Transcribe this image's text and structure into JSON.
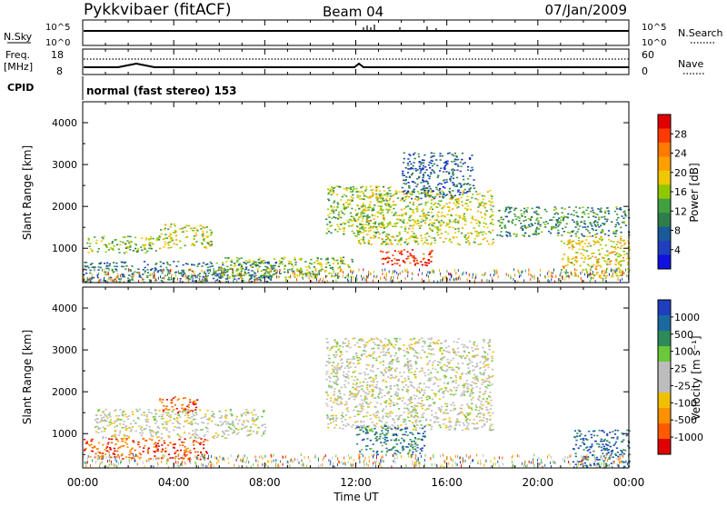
{
  "header": {
    "radar": "Pykkvibaer (fitACF)",
    "beam": "Beam 04",
    "date": "07/Jan/2009"
  },
  "strips": {
    "nsky_label": "N.Sky",
    "nsearch_label": "N.Search",
    "nsky_ticks": [
      "10^5",
      "10^0"
    ],
    "nsearch_ticks": [
      "10^5",
      "10^0"
    ],
    "freq_label": "Freq.",
    "freq_unit": "[MHz]",
    "freq_ticks": [
      "18",
      "8"
    ],
    "nave_label": "Nave",
    "nave_ticks": [
      "60",
      "0"
    ],
    "cpid_label": "CPID",
    "cpid_text": "normal (fast stereo) 153"
  },
  "power_panel": {
    "ylabel": "Slant Range [km]",
    "colorbar_label": "Power [dB]",
    "colorbar_ticks": [
      "28",
      "24",
      "20",
      "16",
      "12",
      "8",
      "4"
    ],
    "colorbar_colors": [
      "#e00000",
      "#ff3a00",
      "#ff7a00",
      "#ffa000",
      "#f0c800",
      "#90c800",
      "#40a040",
      "#2e7d4a",
      "#1a5a9a",
      "#1f3fbf",
      "#1010e0"
    ]
  },
  "velocity_panel": {
    "ylabel": "Slant Range [km]",
    "colorbar_label": "Velocity [m s⁻¹]",
    "colorbar_ticks": [
      "1000",
      "500",
      "100",
      "25",
      "-25",
      "-100",
      "-500",
      "-1000"
    ],
    "colorbar_colors": [
      "#1f3fbf",
      "#1a6aa0",
      "#2e8b57",
      "#6ac83a",
      "#bdbdbd",
      "#bdbdbd",
      "#f0c000",
      "#ff9000",
      "#ff5a00",
      "#e00000"
    ]
  },
  "xaxis": {
    "label": "Time UT",
    "ticks": [
      "00:00",
      "04:00",
      "08:00",
      "12:00",
      "16:00",
      "20:00",
      "00:00"
    ]
  },
  "chart_data": [
    {
      "type": "heatmap",
      "title": "Pykkvibaer (fitACF) Beam 04 07/Jan/2009",
      "variable": "Power",
      "unit": "dB",
      "xlabel": "Time UT",
      "ylabel": "Slant Range [km]",
      "xlim": [
        "00:00",
        "24:00"
      ],
      "ylim": [
        180,
        4500
      ],
      "yticks": [
        1000,
        2000,
        3000,
        4000
      ],
      "clim": [
        0,
        30
      ],
      "colorbar_ticks": [
        4,
        8,
        12,
        16,
        20,
        24,
        28
      ],
      "echo_regions": [
        {
          "t_start": "00:00",
          "t_end": "08:30",
          "range_km": [
            200,
            700
          ],
          "typical_dB": 8
        },
        {
          "t_start": "00:10",
          "t_end": "03:20",
          "range_km": [
            900,
            1300
          ],
          "typical_dB": 14
        },
        {
          "t_start": "03:20",
          "t_end": "05:40",
          "range_km": [
            1000,
            1600
          ],
          "typical_dB": 16
        },
        {
          "t_start": "05:50",
          "t_end": "11:50",
          "range_km": [
            300,
            800
          ],
          "typical_dB": 14
        },
        {
          "t_start": "10:40",
          "t_end": "13:30",
          "range_km": [
            1300,
            2500
          ],
          "typical_dB": 14
        },
        {
          "t_start": "12:00",
          "t_end": "18:00",
          "range_km": [
            1100,
            2400
          ],
          "typical_dB": 16
        },
        {
          "t_start": "13:00",
          "t_end": "15:20",
          "range_km": [
            600,
            1000
          ],
          "typical_dB": 28
        },
        {
          "t_start": "14:00",
          "t_end": "17:10",
          "range_km": [
            2200,
            3300
          ],
          "typical_dB": 6
        },
        {
          "t_start": "18:10",
          "t_end": "24:00",
          "range_km": [
            1300,
            2000
          ],
          "typical_dB": 10
        },
        {
          "t_start": "21:00",
          "t_end": "24:00",
          "range_km": [
            300,
            1300
          ],
          "typical_dB": 18
        }
      ]
    },
    {
      "type": "heatmap",
      "variable": "Velocity",
      "unit": "m s^-1",
      "xlabel": "Time UT",
      "ylabel": "Slant Range [km]",
      "xlim": [
        "00:00",
        "24:00"
      ],
      "ylim": [
        180,
        4500
      ],
      "yticks": [
        1000,
        2000,
        3000,
        4000
      ],
      "clim": [
        -1000,
        1000
      ],
      "colorbar_ticks": [
        1000,
        500,
        100,
        25,
        -25,
        -100,
        -500,
        -1000
      ],
      "echo_regions": [
        {
          "t_start": "00:00",
          "t_end": "05:30",
          "range_km": [
            400,
            900
          ],
          "typical_ms": -300
        },
        {
          "t_start": "00:30",
          "t_end": "08:00",
          "range_km": [
            900,
            1600
          ],
          "typical_ms": 0
        },
        {
          "t_start": "03:20",
          "t_end": "05:00",
          "range_km": [
            1500,
            1900
          ],
          "typical_ms": -300
        },
        {
          "t_start": "10:40",
          "t_end": "18:00",
          "range_km": [
            1100,
            3300
          ],
          "typical_ms": 0
        },
        {
          "t_start": "12:00",
          "t_end": "15:00",
          "range_km": [
            500,
            1200
          ],
          "typical_ms": 100
        },
        {
          "t_start": "21:30",
          "t_end": "24:00",
          "range_km": [
            200,
            1100
          ],
          "typical_ms": 300
        }
      ]
    }
  ]
}
